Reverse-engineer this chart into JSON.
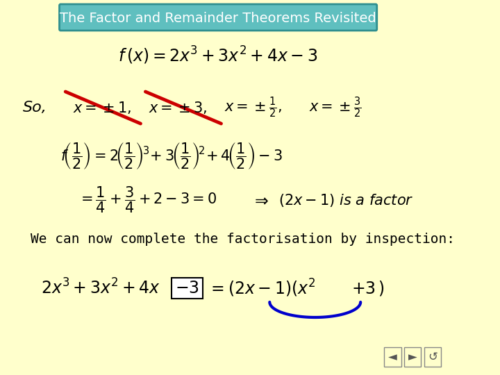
{
  "background_color": "#FFFFCC",
  "title_text": "The Factor and Remainder Theorems Revisited",
  "title_bg": "#5FBFBF",
  "title_border": "#2F8F8F",
  "title_text_color": "white",
  "main_formula": "f(x) = 2x^{3} + 3x^{2} + 4x - 3",
  "so_text": "So,",
  "x_values_latex": [
    "x = \\pm 1,",
    "x = \\pm 3,",
    "x = \\pm \\dfrac{1}{2},",
    "x = \\pm \\dfrac{3}{2}"
  ],
  "strikethrough_color": "#CC0000",
  "eval_line1": "f\\!\\left(\\dfrac{1}{2}\\right) = 2\\!\\left(\\dfrac{1}{2}\\right)^{3}\\! + 3\\!\\left(\\dfrac{1}{2}\\right)^{2}\\! + 4\\!\\left(\\dfrac{1}{2}\\right) - 3",
  "eval_line2": "= \\dfrac{1}{4} + \\dfrac{3}{4} + 2 - 3 = 0",
  "implies_text": "\\Rightarrow",
  "factor_text": "(2x-1) \\text{ is a factor}",
  "factorisation_text": "We can now complete the factorisation by inspection:",
  "poly_left": "2x^{3} + 3x^{2} + 4x",
  "minus3_text": "-3",
  "poly_right": "= (2x-1)(x^{2}",
  "plus3_text": "+ 3 )",
  "box_color": "#FFFFFF",
  "box_border": "#000000",
  "arrow_color": "#0000CC",
  "nav_bg": "#FFFFCC",
  "nav_border": "#888888"
}
